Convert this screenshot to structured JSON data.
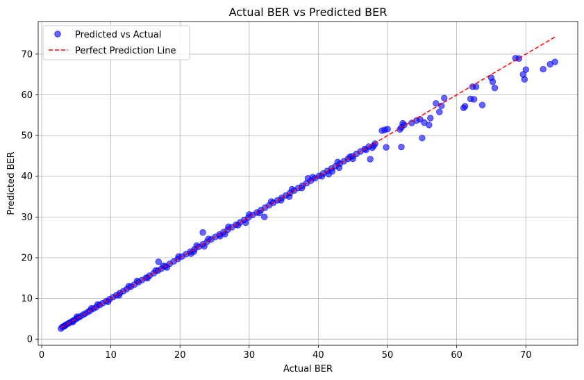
{
  "chart_data": {
    "type": "scatter",
    "title": "Actual BER vs Predicted BER",
    "xlabel": "Actual BER",
    "ylabel": "Predicted BER",
    "xlim": [
      -0.5,
      77.5
    ],
    "ylim": [
      -1.5,
      78
    ],
    "xticks": [
      0,
      10,
      20,
      30,
      40,
      50,
      60,
      70
    ],
    "yticks": [
      0,
      10,
      20,
      30,
      40,
      50,
      60,
      70
    ],
    "grid": true,
    "legend_position": "top-left",
    "series": [
      {
        "name": "Predicted vs Actual",
        "kind": "scatter",
        "color": "#0000ff",
        "x": [
          2.8,
          3.0,
          3.2,
          3.4,
          3.6,
          3.9,
          4.1,
          4.4,
          4.7,
          5.0,
          5.3,
          5.6,
          6.0,
          6.3,
          6.7,
          7.0,
          7.5,
          7.9,
          8.4,
          8.8,
          9.3,
          9.8,
          10.3,
          10.8,
          11.3,
          11.8,
          12.3,
          12.9,
          13.4,
          14.0,
          14.5,
          15.1,
          15.6,
          16.2,
          16.8,
          17.3,
          17.9,
          18.5,
          19.1,
          19.7,
          20.3,
          20.9,
          21.5,
          22.1,
          22.7,
          23.3,
          23.9,
          24.5,
          25.1,
          25.7,
          26.3,
          26.9,
          27.5,
          28.1,
          28.7,
          29.3,
          29.9,
          30.5,
          31.1,
          31.7,
          32.3,
          32.9,
          33.5,
          34.1,
          34.7,
          35.3,
          35.9,
          36.5,
          37.1,
          37.7,
          38.3,
          38.9,
          39.5,
          40.1,
          40.7,
          41.3,
          41.9,
          42.5,
          43.1,
          43.7,
          44.3,
          44.9,
          45.5,
          46.1,
          46.7,
          47.3,
          48.0,
          5.1,
          7.2,
          9.6,
          12.6,
          15.3,
          16.5,
          18.1,
          19.8,
          21.6,
          22.4,
          23.5,
          24.1,
          25.8,
          27.0,
          28.4,
          30.0,
          31.5,
          33.2,
          34.6,
          36.2,
          37.6,
          39.2,
          40.5,
          42.0,
          43.0,
          45.0,
          47.5,
          23.3,
          22.0,
          29.5,
          32.2,
          16.9,
          17.6,
          41.5,
          42.8,
          44.6,
          46.9,
          47.8,
          49.2,
          49.6,
          49.8,
          50.0,
          52.0,
          52.0,
          52.2,
          52.4,
          53.5,
          54.2,
          54.7,
          55.0,
          55.3,
          56.0,
          56.2,
          57.0,
          57.5,
          57.8,
          58.2,
          61.0,
          61.2,
          62.0,
          62.3,
          62.5,
          62.8,
          63.7,
          65.0,
          65.2,
          65.5,
          68.5,
          69.0,
          69.6,
          69.8,
          70.0,
          72.5,
          73.5,
          74.2,
          51.8,
          48.2,
          38.5,
          35.8,
          26.5,
          13.8,
          11.2,
          8.1,
          4.5,
          3.3
        ],
        "y": [
          2.6,
          3.0,
          3.2,
          3.4,
          3.6,
          3.9,
          4.1,
          4.4,
          4.7,
          5.0,
          5.3,
          5.6,
          6.0,
          6.3,
          6.7,
          7.0,
          7.5,
          7.9,
          8.4,
          8.8,
          9.3,
          9.8,
          10.3,
          10.8,
          11.3,
          11.8,
          12.3,
          12.9,
          13.4,
          14.0,
          14.5,
          15.1,
          15.6,
          16.2,
          16.8,
          17.3,
          17.9,
          18.5,
          19.1,
          19.7,
          20.3,
          20.9,
          21.5,
          22.1,
          22.7,
          23.3,
          23.9,
          24.5,
          25.1,
          25.7,
          26.3,
          26.9,
          27.5,
          28.1,
          28.7,
          29.3,
          29.9,
          30.5,
          31.1,
          31.7,
          32.3,
          32.9,
          33.5,
          34.1,
          34.7,
          35.3,
          35.9,
          36.5,
          37.1,
          37.7,
          38.3,
          38.9,
          39.5,
          40.1,
          40.7,
          41.3,
          41.9,
          42.5,
          43.1,
          43.7,
          44.3,
          44.9,
          45.5,
          46.1,
          46.7,
          47.3,
          47.5,
          5.5,
          7.6,
          9.2,
          13.0,
          15.0,
          16.9,
          17.6,
          20.3,
          21.0,
          23.0,
          22.8,
          24.6,
          25.3,
          27.6,
          28.0,
          30.6,
          31.0,
          33.8,
          34.1,
          36.8,
          37.1,
          39.8,
          40.0,
          41.2,
          42.1,
          44.3,
          44.2,
          26.2,
          21.5,
          28.6,
          30.0,
          19.0,
          18.0,
          40.5,
          43.5,
          44.8,
          46.5,
          47.0,
          51.2,
          51.4,
          47.1,
          51.6,
          47.2,
          52.0,
          53.0,
          52.6,
          53.1,
          53.7,
          54.0,
          49.4,
          53.2,
          52.6,
          54.3,
          57.9,
          55.8,
          57.3,
          59.2,
          56.8,
          57.2,
          59.0,
          62.0,
          58.9,
          62.0,
          57.5,
          64.2,
          63.2,
          61.7,
          69.0,
          68.9,
          65.0,
          63.8,
          66.2,
          66.3,
          67.5,
          68.1,
          51.5,
          48.0,
          39.5,
          35.0,
          25.8,
          14.3,
          10.8,
          8.5,
          4.2,
          3.2
        ]
      },
      {
        "name": "Perfect Prediction Line",
        "kind": "line",
        "color": "#ff0000",
        "dash": "dashed",
        "x": [
          2.8,
          74.2
        ],
        "y": [
          2.8,
          74.2
        ]
      }
    ]
  },
  "colors": {
    "axes": "#000000",
    "grid": "#b0b0b0",
    "marker_fill": "#0000ff",
    "line": "#ff0000"
  }
}
